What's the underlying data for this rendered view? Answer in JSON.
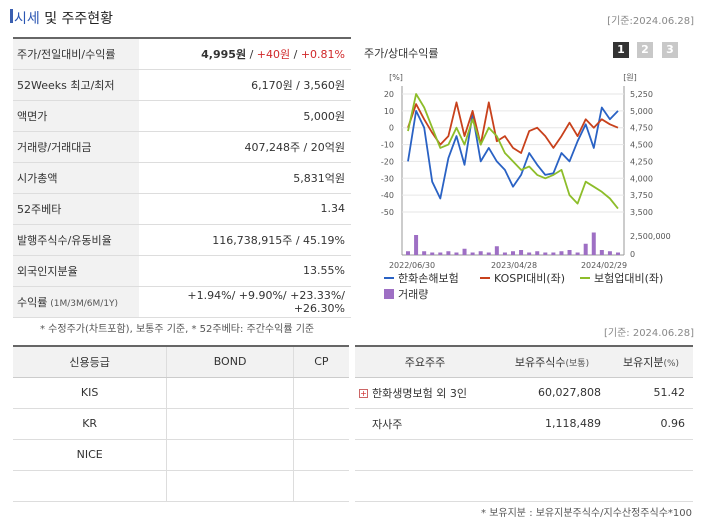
{
  "header": {
    "title_accent": "시세",
    "title_rest": " 및 주주현황",
    "basis": "[기준:2024.06.28]"
  },
  "info": {
    "rows": [
      {
        "label": "주가/전일대비/수익률",
        "price": "4,995원",
        "sep1": " / ",
        "change": "+40원",
        "sep2": " / ",
        "rate": "+0.81%"
      },
      {
        "label": "52Weeks 최고/최저",
        "value": "6,170원 / 3,560원"
      },
      {
        "label": "액면가",
        "value": "5,000원"
      },
      {
        "label": "거래량/거래대금",
        "value": "407,248주 / 20억원"
      },
      {
        "label": "시가총액",
        "value": "5,831억원"
      },
      {
        "label": "52주베타",
        "value": "1.34"
      },
      {
        "label": "발행주식수/유동비율",
        "value": "116,738,915주 / 45.19%"
      },
      {
        "label": "외국인지분율",
        "value": "13.55%"
      },
      {
        "label": "수익률",
        "label_small": " (1M/3M/6M/1Y)",
        "value": "+1.94%/ +9.90%/ +23.33%/ +26.30%"
      }
    ],
    "note": "* 수정주가(차트포함), 보통주 기준, * 52주베타: 주간수익률 기준"
  },
  "chart": {
    "title": "주가/상대수익률",
    "pages": [
      "1",
      "2",
      "3"
    ]
  },
  "chart_data": {
    "type": "line",
    "x_tick_labels": [
      "2022/06/30",
      "2023/04/28",
      "2024/02/29"
    ],
    "left_axis": {
      "unit": "[%]",
      "ticks": [
        20,
        10,
        0,
        -10,
        -20,
        -30,
        -40,
        -50
      ],
      "range": [
        -50,
        20
      ]
    },
    "right_axis": {
      "unit": "[원]",
      "ticks": [
        5250,
        5000,
        4750,
        4500,
        4250,
        4000,
        3750,
        3500
      ],
      "range": [
        3500,
        5250
      ]
    },
    "volume_axis": {
      "ticks": [
        "2,500,000",
        "0"
      ]
    },
    "series": [
      {
        "name": "한화손해보험",
        "color": "#2a62c4",
        "values": [
          -20,
          10,
          0,
          -32,
          -42,
          -18,
          -5,
          -22,
          8,
          -20,
          -12,
          -20,
          -25,
          -35,
          -28,
          -15,
          -22,
          -28,
          -27,
          -15,
          -20,
          -8,
          2,
          -12,
          12,
          5,
          10
        ]
      },
      {
        "name": "KOSPI대비(좌)",
        "color": "#c8411c",
        "values": [
          0,
          14,
          5,
          -3,
          -10,
          -5,
          15,
          -5,
          10,
          -10,
          15,
          -8,
          -5,
          -12,
          -15,
          -2,
          0,
          -5,
          -12,
          -5,
          3,
          -5,
          5,
          0,
          5,
          2,
          0
        ]
      },
      {
        "name": "보험업대비(좌)",
        "color": "#8dbd2a",
        "values": [
          -2,
          20,
          12,
          0,
          -12,
          -10,
          0,
          -10,
          5,
          -10,
          0,
          -5,
          -15,
          -20,
          -25,
          -23,
          -28,
          -30,
          -28,
          -25,
          -40,
          -45,
          -32,
          -35,
          -38,
          -42,
          -48
        ]
      }
    ],
    "volume": {
      "name": "거래량",
      "color": "#9e6fc4",
      "values": [
        0.15,
        0.8,
        0.15,
        0.1,
        0.1,
        0.15,
        0.1,
        0.25,
        0.1,
        0.15,
        0.1,
        0.35,
        0.1,
        0.15,
        0.2,
        0.1,
        0.15,
        0.1,
        0.1,
        0.15,
        0.2,
        0.1,
        0.45,
        0.9,
        0.2,
        0.15,
        0.1
      ]
    }
  },
  "basis_mid": "[기준: 2024.06.28]",
  "credit": {
    "headers": [
      "신용등급",
      "BOND",
      "CP"
    ],
    "rows": [
      {
        "agency": "KIS",
        "bond": "",
        "cp": ""
      },
      {
        "agency": "KR",
        "bond": "",
        "cp": ""
      },
      {
        "agency": "NICE",
        "bond": "",
        "cp": ""
      },
      {
        "agency": "",
        "bond": "",
        "cp": ""
      }
    ]
  },
  "holders": {
    "headers": {
      "name": "주요주주",
      "shares": "보유주식수",
      "shares_small": "(보통)",
      "ratio": "보유지분",
      "ratio_small": "(%)"
    },
    "rows": [
      {
        "name": "한화생명보험 외 3인",
        "shares": "60,027,808",
        "ratio": "51.42",
        "expand": "+"
      },
      {
        "name": "자사주",
        "shares": "1,118,489",
        "ratio": "0.96"
      },
      {
        "name": "",
        "shares": "",
        "ratio": ""
      },
      {
        "name": "",
        "shares": "",
        "ratio": ""
      }
    ],
    "note": "* 보유지분 : 보유지분주식수/지수산정주식수*100"
  }
}
